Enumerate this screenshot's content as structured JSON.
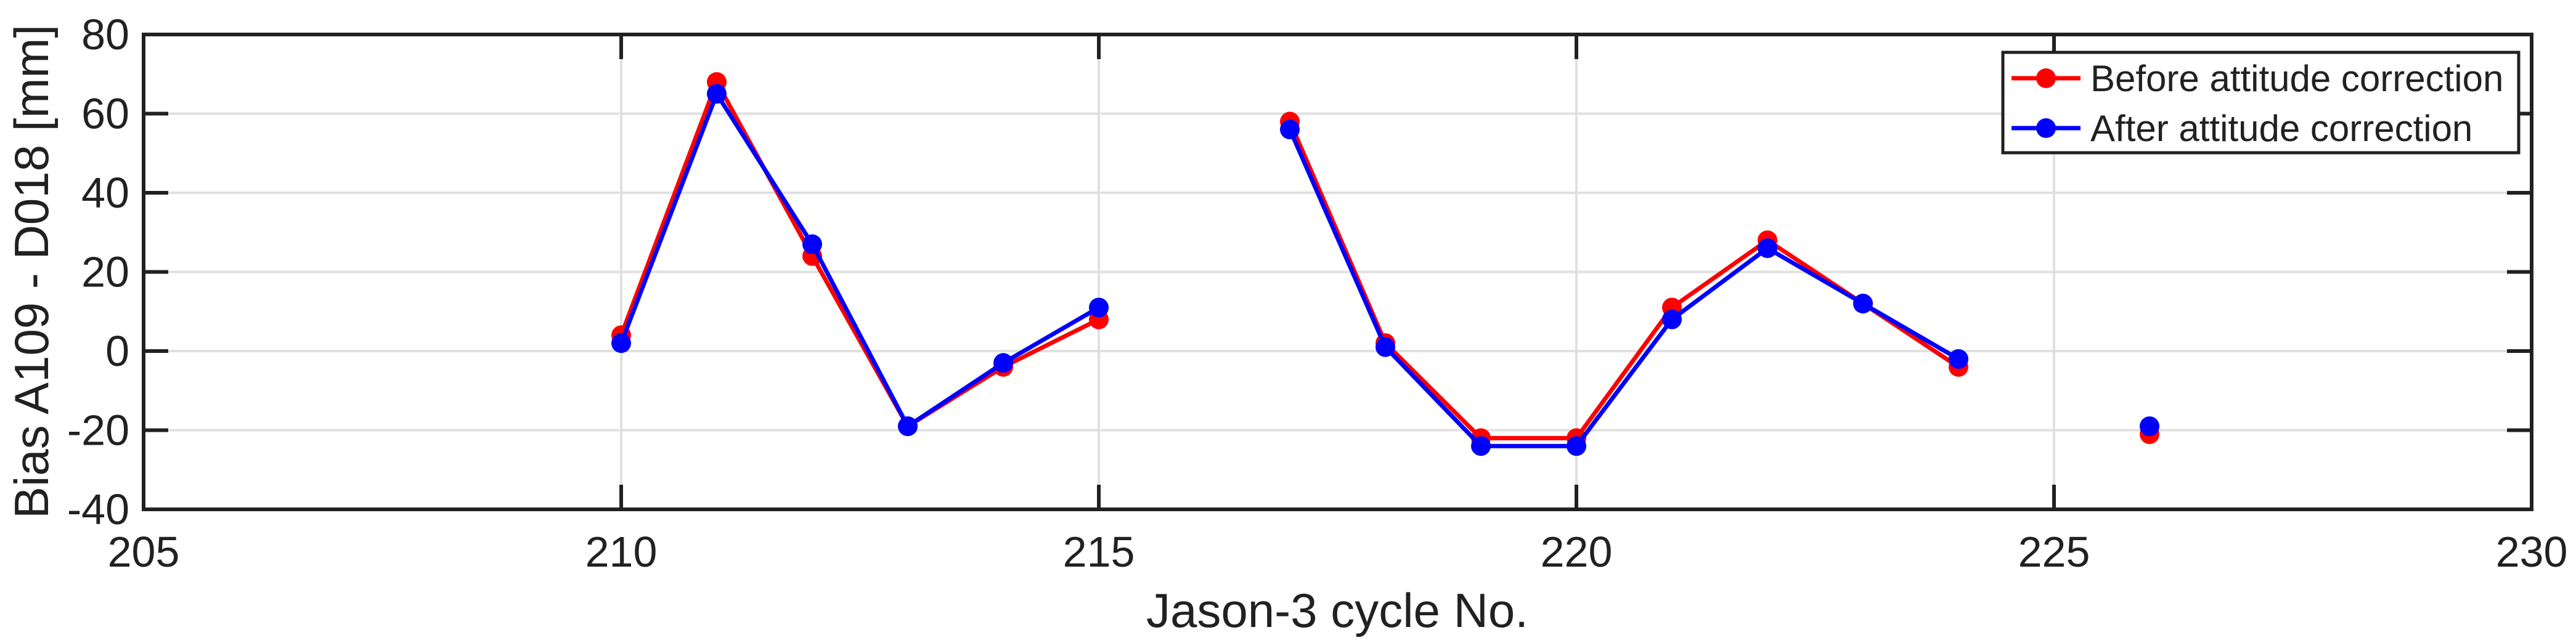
{
  "figure": {
    "background": "#ffffff",
    "frame_color": "#212121",
    "grid_color": "#e0e0e0",
    "text_color": "#212121"
  },
  "chart_data": {
    "type": "line",
    "title": "",
    "xlabel": "Jason-3 cycle No.",
    "ylabel": "Bias A109 - D018 [mm]",
    "xlim": [
      205,
      230
    ],
    "ylim": [
      -40,
      80
    ],
    "xticks": [
      205,
      210,
      215,
      220,
      225,
      230
    ],
    "yticks": [
      -40,
      -20,
      0,
      20,
      40,
      60,
      80
    ],
    "grid": true,
    "legend_position": "top-right",
    "series": [
      {
        "name": "Before attitude correction",
        "color": "#ff0000",
        "marker": "circle",
        "x": [
          210,
          211,
          212,
          213,
          214,
          215,
          217,
          218,
          219,
          220,
          221,
          222,
          223,
          224,
          226
        ],
        "y": [
          4,
          68,
          24,
          -19,
          -4,
          8,
          58,
          2,
          -22,
          -22,
          11,
          28,
          12,
          -4,
          -21
        ]
      },
      {
        "name": "After attitude correction",
        "color": "#0000ff",
        "marker": "circle",
        "x": [
          210,
          211,
          212,
          213,
          214,
          215,
          217,
          218,
          219,
          220,
          221,
          222,
          223,
          224,
          226
        ],
        "y": [
          2,
          65,
          27,
          -19,
          -3,
          11,
          56,
          1,
          -24,
          -24,
          8,
          26,
          12,
          -2,
          -19
        ]
      }
    ]
  }
}
